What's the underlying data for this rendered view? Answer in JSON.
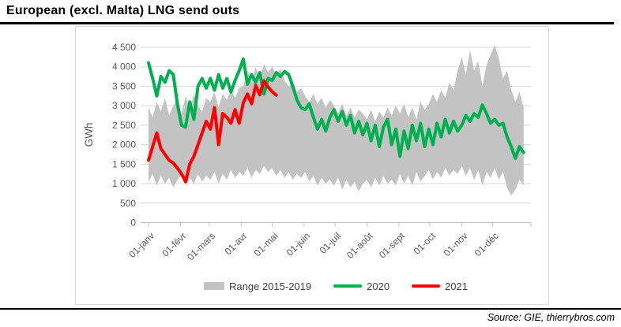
{
  "title": "European (excl. Malta) LNG send outs",
  "source": "Source: GIE, thierrybros.com",
  "chart_data": {
    "type": "area",
    "title": "European (excl. Malta) LNG send outs",
    "xlabel": "",
    "ylabel": "GWh",
    "ylim": [
      0,
      4500
    ],
    "grid": "horizontal",
    "legend_position": "bottom-center",
    "colors": {
      "band": "#c3c3c3",
      "line2020": "#00b050",
      "line2021": "#ff0000",
      "gridline": "#d9d9d9",
      "axis": "#bfbfbf",
      "tick_text": "#595959"
    },
    "yticks": [
      {
        "value": 0,
        "label": "0"
      },
      {
        "value": 500,
        "label": "500"
      },
      {
        "value": 1000,
        "label": "1 000"
      },
      {
        "value": 1500,
        "label": "1 500"
      },
      {
        "value": 2000,
        "label": "2 000"
      },
      {
        "value": 2500,
        "label": "2 500"
      },
      {
        "value": 3000,
        "label": "3 000"
      },
      {
        "value": 3500,
        "label": "3 500"
      },
      {
        "value": 4000,
        "label": "4 000"
      },
      {
        "value": 4500,
        "label": "4 500"
      }
    ],
    "xticks": [
      {
        "day": 0,
        "label": "01-janv"
      },
      {
        "day": 31,
        "label": "01-févr"
      },
      {
        "day": 59,
        "label": "01-mars"
      },
      {
        "day": 90,
        "label": "01-avr"
      },
      {
        "day": 120,
        "label": "01-mai"
      },
      {
        "day": 151,
        "label": "01-juin"
      },
      {
        "day": 181,
        "label": "01-juil"
      },
      {
        "day": 212,
        "label": "01-août"
      },
      {
        "day": 243,
        "label": "01-sept"
      },
      {
        "day": 273,
        "label": "01-oct"
      },
      {
        "day": 304,
        "label": "01-nov"
      },
      {
        "day": 334,
        "label": "01-déc"
      }
    ],
    "series": [
      {
        "name": "Range 2015-2019",
        "type": "band",
        "color": "#c3c3c3",
        "day_start": 0,
        "day_step": 4,
        "upper": [
          2950,
          2700,
          3100,
          2850,
          3200,
          2750,
          3000,
          3150,
          2800,
          3250,
          2900,
          3300,
          3000,
          2850,
          3200,
          3100,
          3350,
          2950,
          3300,
          3150,
          3400,
          3200,
          3450,
          3500,
          3900,
          3600,
          3980,
          3700,
          4060,
          3850,
          4000,
          3800,
          3950,
          3650,
          3500,
          3600,
          3350,
          3450,
          3250,
          3100,
          3300,
          3050,
          3200,
          2950,
          3150,
          3000,
          2800,
          3050,
          2750,
          2950,
          2700,
          2900,
          2800,
          2650,
          2900,
          2600,
          2850,
          2700,
          2950,
          2750,
          3000,
          2800,
          3050,
          2700,
          2950,
          2650,
          3100,
          2900,
          3050,
          3300,
          3100,
          3400,
          3200,
          3600,
          3400,
          3900,
          4250,
          3800,
          4430,
          3900,
          4150,
          3500,
          4050,
          4300,
          4560,
          4200,
          3700,
          3900,
          3400,
          3100,
          3350,
          2950
        ],
        "lower": [
          1050,
          1250,
          950,
          1200,
          1000,
          1150,
          900,
          1100,
          1200,
          950,
          1150,
          1000,
          1250,
          1050,
          1200,
          1100,
          1300,
          1000,
          1250,
          1100,
          1350,
          1150,
          1300,
          1200,
          1400,
          1150,
          1350,
          1250,
          1450,
          1300,
          1400,
          1200,
          1350,
          1150,
          1300,
          1100,
          1250,
          1150,
          1300,
          1050,
          1200,
          950,
          1150,
          1000,
          1100,
          950,
          1150,
          850,
          1100,
          900,
          1050,
          800,
          1000,
          1100,
          900,
          1150,
          950,
          1200,
          1000,
          1100,
          950,
          1250,
          1000,
          1200,
          950,
          1300,
          1050,
          1200,
          1350,
          1100,
          1300,
          1150,
          1400,
          1200,
          1350,
          1250,
          1450,
          1200,
          1400,
          1100,
          1350,
          950,
          1300,
          1150,
          1400,
          1100,
          1300,
          900,
          700,
          850,
          1100,
          950
        ]
      },
      {
        "name": "2020",
        "type": "line",
        "color": "#00b050",
        "day_start": 0,
        "day_step": 4,
        "values": [
          4100,
          3700,
          3250,
          3750,
          3600,
          3900,
          3800,
          3050,
          2500,
          2450,
          3100,
          2650,
          3500,
          3700,
          3450,
          3700,
          3400,
          3800,
          3450,
          3700,
          3350,
          3650,
          3900,
          4200,
          3550,
          3800,
          3600,
          3850,
          3300,
          3700,
          3650,
          3850,
          3750,
          3880,
          3800,
          3500,
          3150,
          2950,
          2900,
          3050,
          2700,
          2400,
          2650,
          2350,
          2700,
          2900,
          2600,
          2850,
          2500,
          2750,
          2300,
          2600,
          2250,
          2550,
          2100,
          2500,
          1950,
          2450,
          2650,
          2000,
          2400,
          1700,
          2350,
          1900,
          2500,
          2100,
          2550,
          1950,
          2400,
          2000,
          2550,
          2200,
          2650,
          2300,
          2600,
          2350,
          2500,
          2750,
          2600,
          2800,
          2700,
          3020,
          2800,
          2550,
          2650,
          2500,
          2550,
          2200,
          1950,
          1650,
          1950,
          1800
        ]
      },
      {
        "name": "2021",
        "type": "line",
        "color": "#ff0000",
        "day_start": 0,
        "day_step": 4,
        "values": [
          1600,
          1950,
          2300,
          1900,
          1750,
          1600,
          1530,
          1400,
          1250,
          1050,
          1500,
          1700,
          2000,
          2300,
          2600,
          2400,
          2950,
          2000,
          2800,
          2700,
          2550,
          2900,
          2550,
          3080,
          3300,
          3050,
          3520,
          3280,
          3640,
          3480,
          3360,
          3270
        ]
      }
    ]
  }
}
